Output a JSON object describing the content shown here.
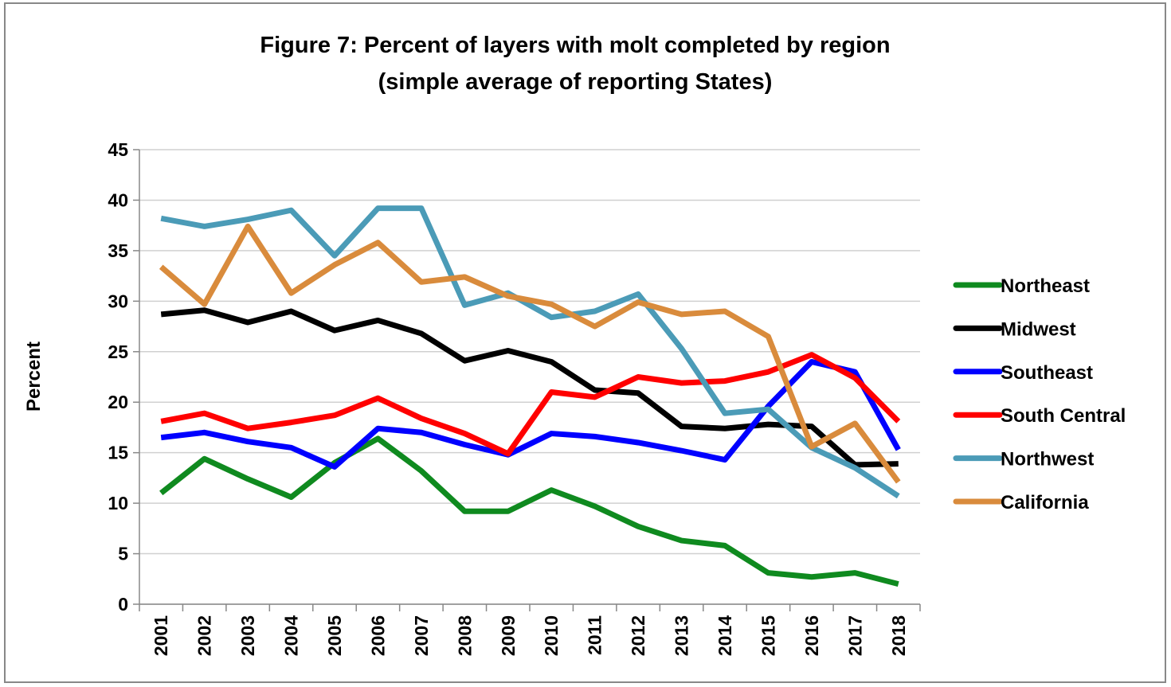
{
  "chart_data": {
    "type": "line",
    "title": "Figure 7: Percent of layers with molt completed by region",
    "subtitle": "(simple average of reporting States)",
    "y_label": "Percent",
    "categories": [
      "2001",
      "2002",
      "2003",
      "2004",
      "2005",
      "2006",
      "2007",
      "2008",
      "2009",
      "2010",
      "2011",
      "2012",
      "2013",
      "2014",
      "2015",
      "2016",
      "2017",
      "2018"
    ],
    "series": [
      {
        "name": "Northeast",
        "color": "#0f8a1f",
        "values": [
          11.0,
          14.4,
          12.4,
          10.6,
          14.0,
          16.4,
          13.2,
          9.2,
          9.2,
          11.3,
          9.7,
          7.7,
          6.3,
          5.8,
          3.1,
          2.7,
          3.1,
          2.0
        ]
      },
      {
        "name": "Midwest",
        "color": "#000000",
        "values": [
          28.7,
          29.1,
          27.9,
          29.0,
          27.1,
          28.1,
          26.8,
          24.1,
          25.1,
          24.0,
          21.2,
          20.9,
          17.6,
          17.4,
          17.8,
          17.6,
          13.8,
          13.9
        ]
      },
      {
        "name": "Southeast",
        "color": "#0000ff",
        "values": [
          16.5,
          17.0,
          16.1,
          15.5,
          13.6,
          17.4,
          17.0,
          15.8,
          14.8,
          16.9,
          16.6,
          16.0,
          15.2,
          14.3,
          19.6,
          24.0,
          23.0,
          15.3
        ]
      },
      {
        "name": "South Central",
        "color": "#ff0000",
        "values": [
          18.1,
          18.9,
          17.4,
          18.0,
          18.7,
          20.4,
          18.4,
          16.9,
          14.9,
          21.0,
          20.5,
          22.5,
          21.9,
          22.1,
          23.0,
          24.7,
          22.4,
          18.1
        ]
      },
      {
        "name": "Northwest",
        "color": "#4b9bb7",
        "values": [
          38.2,
          37.4,
          38.1,
          39.0,
          34.5,
          39.2,
          39.2,
          29.6,
          30.8,
          28.4,
          29.0,
          30.7,
          25.3,
          18.9,
          19.3,
          15.5,
          13.5,
          10.7
        ]
      },
      {
        "name": "California",
        "color": "#d98b3c",
        "values": [
          33.4,
          29.7,
          37.4,
          30.8,
          33.6,
          35.8,
          31.9,
          32.4,
          30.5,
          29.7,
          27.5,
          29.9,
          28.7,
          29.0,
          26.5,
          15.6,
          17.9,
          12.1
        ]
      }
    ],
    "ylim": [
      0,
      45
    ],
    "yticks": [
      0,
      5,
      10,
      15,
      20,
      25,
      30,
      35,
      40,
      45
    ],
    "grid": true,
    "legend": "right"
  }
}
